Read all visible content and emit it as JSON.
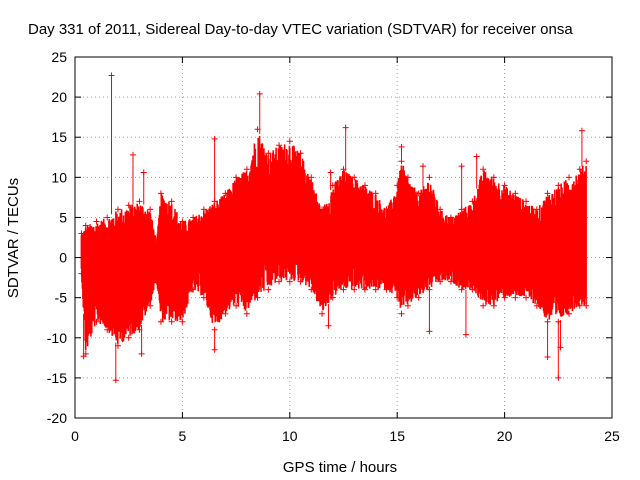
{
  "chart_data": {
    "type": "scatter",
    "title": "Day 331 of 2011, Sidereal Day-to-day VTEC variation (SDTVAR) for receiver onsa",
    "xlabel": "GPS time / hours",
    "ylabel": "SDTVAR / TECUs",
    "xlim": [
      0,
      25
    ],
    "ylim": [
      -20,
      25
    ],
    "xticks": [
      0,
      5,
      10,
      15,
      20,
      25
    ],
    "yticks": [
      -20,
      -15,
      -10,
      -5,
      0,
      5,
      10,
      15,
      20,
      25
    ],
    "grid": true,
    "marker": "+",
    "series": [
      {
        "name": "SDTVAR",
        "color": "#ff0000",
        "envelope": {
          "x": [
            0.3,
            0.5,
            1.0,
            1.5,
            2.0,
            2.5,
            3.0,
            3.5,
            3.8,
            4.0,
            4.5,
            5.0,
            5.5,
            6.0,
            6.5,
            7.0,
            7.5,
            8.0,
            8.5,
            9.0,
            9.5,
            10.0,
            10.5,
            11.0,
            11.5,
            12.0,
            12.5,
            13.0,
            13.5,
            14.0,
            14.5,
            15.0,
            15.2,
            15.5,
            16.0,
            16.5,
            17.0,
            17.5,
            18.0,
            18.5,
            19.0,
            19.5,
            20.0,
            20.5,
            21.0,
            21.5,
            22.0,
            22.5,
            23.0,
            23.5,
            23.8
          ],
          "upper": [
            3,
            4,
            4.5,
            5,
            6,
            6.5,
            7,
            6,
            2,
            8,
            7,
            4.5,
            5,
            6,
            7,
            8,
            10,
            11,
            16,
            13,
            14,
            14.5,
            13,
            10,
            6,
            9,
            11,
            10,
            9,
            8,
            6,
            9,
            12,
            10,
            8,
            10,
            6,
            5,
            6,
            7,
            11,
            10,
            9,
            8,
            7,
            6,
            8,
            9,
            10,
            11,
            12
          ],
          "lower": [
            -2,
            -12,
            -8,
            -9,
            -11,
            -10,
            -9,
            -6,
            -3,
            -8,
            -8,
            -8,
            -4,
            -5,
            -9,
            -7,
            -6,
            -7,
            -5,
            -4,
            -3,
            -3,
            -3,
            -4,
            -7,
            -5,
            -4,
            -4,
            -4,
            -4,
            -4,
            -5,
            -7,
            -6,
            -5,
            -4,
            -3,
            -3,
            -4,
            -4,
            -6,
            -6,
            -5,
            -5,
            -5,
            -6,
            -8,
            -8,
            -7,
            -6,
            -6
          ]
        },
        "outliers": [
          {
            "x": 1.7,
            "y": 22.7
          },
          {
            "x": 1.9,
            "y": -15.3
          },
          {
            "x": 0.4,
            "y": -12.3
          },
          {
            "x": 2.7,
            "y": 12.8
          },
          {
            "x": 3.2,
            "y": 10.6
          },
          {
            "x": 3.1,
            "y": -12.0
          },
          {
            "x": 6.5,
            "y": 14.8
          },
          {
            "x": 6.5,
            "y": -11.5
          },
          {
            "x": 8.6,
            "y": 20.4
          },
          {
            "x": 11.9,
            "y": 10.6
          },
          {
            "x": 11.8,
            "y": -8.5
          },
          {
            "x": 12.6,
            "y": 16.2
          },
          {
            "x": 15.2,
            "y": 13.8
          },
          {
            "x": 16.2,
            "y": 11.4
          },
          {
            "x": 16.5,
            "y": -9.2
          },
          {
            "x": 18.0,
            "y": 11.4
          },
          {
            "x": 18.2,
            "y": -9.6
          },
          {
            "x": 18.7,
            "y": 12.6
          },
          {
            "x": 22.0,
            "y": -12.4
          },
          {
            "x": 22.5,
            "y": -15.0
          },
          {
            "x": 22.6,
            "y": -11.2
          },
          {
            "x": 23.6,
            "y": 15.8
          }
        ]
      }
    ]
  }
}
